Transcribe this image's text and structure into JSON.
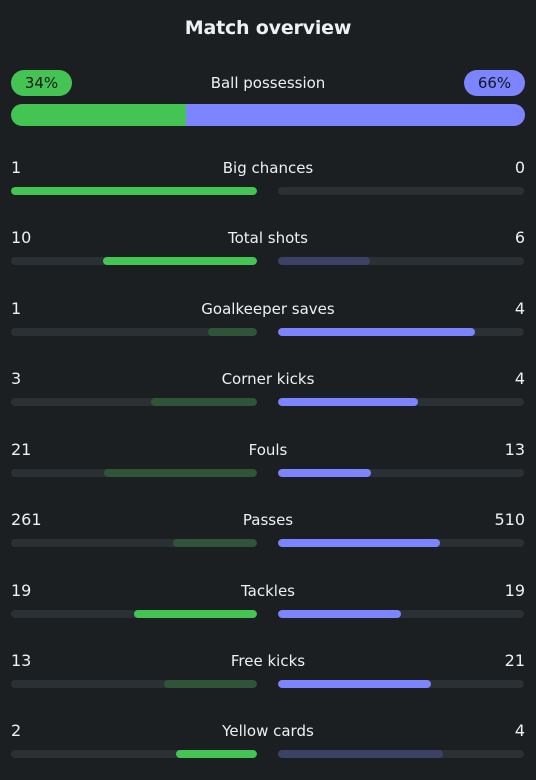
{
  "title": "Match overview",
  "colors": {
    "home_strong": "#44c553",
    "home_weak": "#2f5438",
    "away_strong": "#7c84ff",
    "away_weak": "#3c4266",
    "track": "#2b3034"
  },
  "possession": {
    "label": "Ball possession",
    "home": "34%",
    "away": "66%",
    "home_fraction": 0.34,
    "away_fraction": 0.66
  },
  "stats": [
    {
      "label": "Big chances",
      "home": "1",
      "away": "0",
      "home_fraction": 1.0,
      "away_fraction": 0.0,
      "winner": "home"
    },
    {
      "label": "Total shots",
      "home": "10",
      "away": "6",
      "home_fraction": 0.625,
      "away_fraction": 0.375,
      "winner": "home"
    },
    {
      "label": "Goalkeeper saves",
      "home": "1",
      "away": "4",
      "home_fraction": 0.2,
      "away_fraction": 0.8,
      "winner": "away"
    },
    {
      "label": "Corner kicks",
      "home": "3",
      "away": "4",
      "home_fraction": 0.43,
      "away_fraction": 0.57,
      "winner": "away"
    },
    {
      "label": "Fouls",
      "home": "21",
      "away": "13",
      "home_fraction": 0.62,
      "away_fraction": 0.38,
      "winner": "away"
    },
    {
      "label": "Passes",
      "home": "261",
      "away": "510",
      "home_fraction": 0.34,
      "away_fraction": 0.66,
      "winner": "away"
    },
    {
      "label": "Tackles",
      "home": "19",
      "away": "19",
      "home_fraction": 0.5,
      "away_fraction": 0.5,
      "winner": "both"
    },
    {
      "label": "Free kicks",
      "home": "13",
      "away": "21",
      "home_fraction": 0.38,
      "away_fraction": 0.62,
      "winner": "away"
    },
    {
      "label": "Yellow cards",
      "home": "2",
      "away": "4",
      "home_fraction": 0.33,
      "away_fraction": 0.67,
      "winner": "home"
    }
  ]
}
